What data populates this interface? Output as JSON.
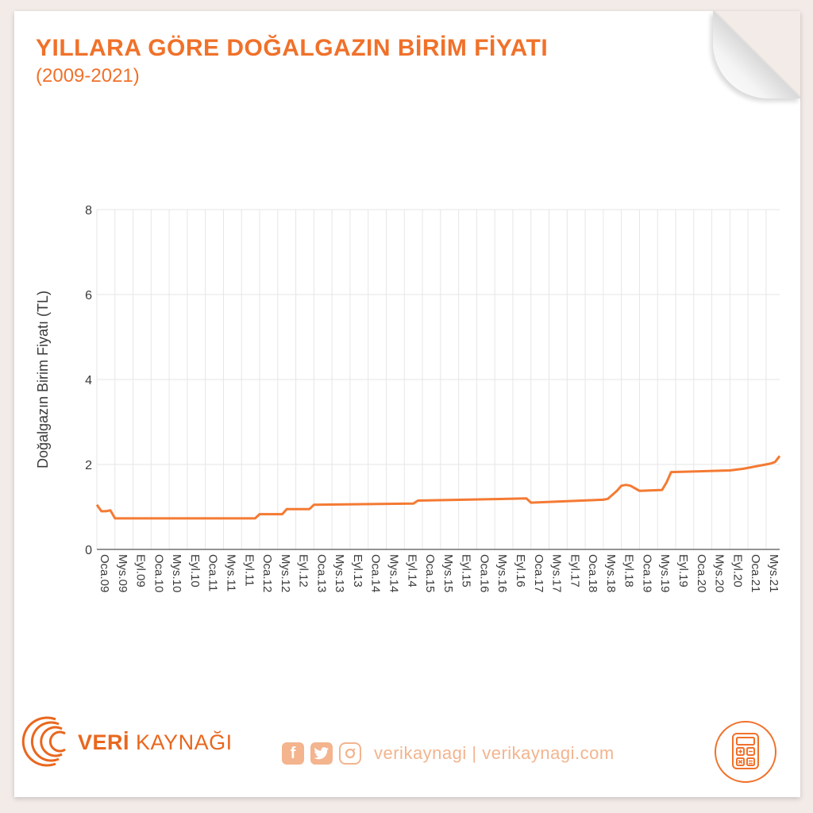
{
  "header": {
    "title": "YILLARA GÖRE DOĞALGAZIN BİRİM FİYATI",
    "subtitle": "(2009-2021)"
  },
  "footer": {
    "logo_veri": "VERİ",
    "logo_kaynagi": "KAYNAĞI",
    "facebook_letter": "f",
    "social_text": "verikaynagi | verikaynagi.com"
  },
  "colors": {
    "accent": "#f0712a",
    "line": "#f47a33",
    "grid": "#e6e6e6",
    "social": "#f3b48e"
  },
  "icons": [
    "veri-kaynagi-logo-icon",
    "facebook-icon",
    "twitter-icon",
    "instagram-icon",
    "calculator-icon"
  ],
  "chart_data": {
    "type": "line",
    "title": "YILLARA GÖRE DOĞALGAZIN BİRİM FİYATI",
    "subtitle": "(2009-2021)",
    "ylabel": "Doğalgazın Birim Fiyatı (TL)",
    "xlabel": "",
    "ylim": [
      0,
      8
    ],
    "yticks": [
      0,
      2,
      4,
      6,
      8
    ],
    "grid": true,
    "x_tick_labels": [
      "Oca.09",
      "Mys.09",
      "Eyl.09",
      "Oca.10",
      "Mys.10",
      "Eyl.10",
      "Oca.11",
      "Mys.11",
      "Eyl.11",
      "Oca.12",
      "Mys.12",
      "Eyl.12",
      "Oca.13",
      "Mys.13",
      "Eyl.13",
      "Oca.14",
      "Mys.14",
      "Eyl.14",
      "Oca.15",
      "Mys.15",
      "Eyl.15",
      "Oca.16",
      "Mys.16",
      "Eyl.16",
      "Oca.17",
      "Mys.17",
      "Eyl.17",
      "Oca.18",
      "Mys.18",
      "Eyl.18",
      "Oca.19",
      "Mys.19",
      "Eyl.19",
      "Oca.20",
      "Mys.20",
      "Eyl.20",
      "Oca.21",
      "Mys.21"
    ],
    "x_range": [
      "2009-01",
      "2021-08"
    ],
    "series": [
      {
        "x": [
          "2009-01",
          "2009-02",
          "2009-03",
          "2009-04",
          "2009-05",
          "2009-06",
          "2011-12",
          "2012-01",
          "2012-06",
          "2012-07",
          "2012-12",
          "2013-01",
          "2014-11",
          "2014-12",
          "2016-12",
          "2017-01",
          "2018-05",
          "2018-06",
          "2018-08",
          "2018-09",
          "2018-10",
          "2018-11",
          "2019-01",
          "2019-06",
          "2019-07",
          "2019-08",
          "2020-09",
          "2020-12",
          "2021-03",
          "2021-06",
          "2021-07",
          "2021-08"
        ],
        "values": [
          1.05,
          0.9,
          0.9,
          0.92,
          0.73,
          0.73,
          0.73,
          0.83,
          0.83,
          0.95,
          0.95,
          1.05,
          1.08,
          1.15,
          1.2,
          1.1,
          1.17,
          1.19,
          1.38,
          1.5,
          1.52,
          1.5,
          1.38,
          1.4,
          1.58,
          1.82,
          1.86,
          1.9,
          1.96,
          2.02,
          2.06,
          2.2
        ]
      }
    ]
  }
}
